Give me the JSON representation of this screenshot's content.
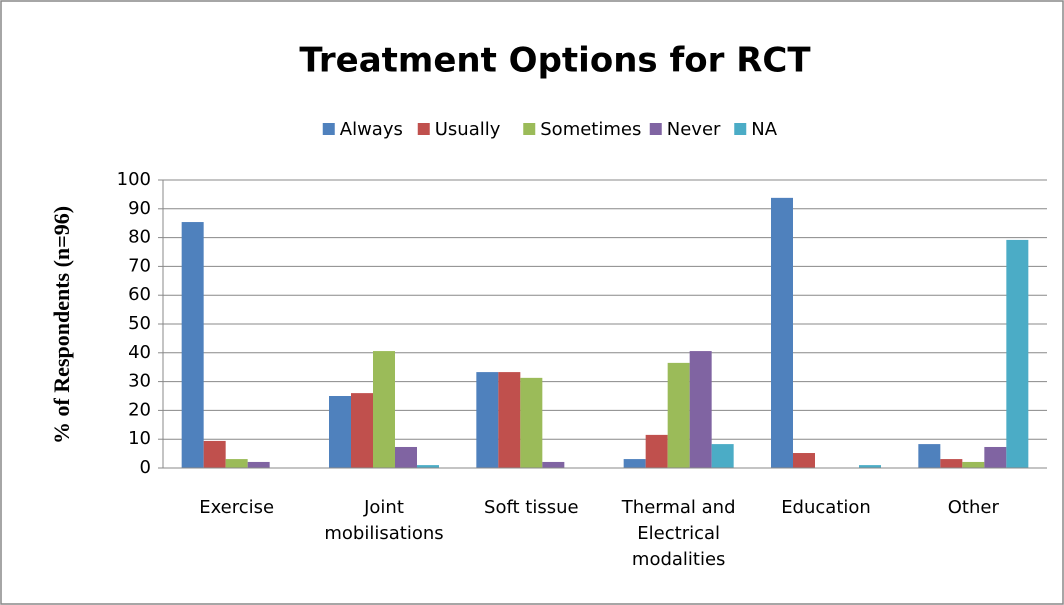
{
  "chart_data": {
    "type": "bar",
    "title": "Treatment Options for RCT",
    "ylabel": "% of Respondents (n=96)",
    "categories": [
      "Exercise",
      "Joint mobilisations",
      "Soft tissue",
      "Thermal and Electrical modalities",
      "Education",
      "Other"
    ],
    "series": [
      {
        "name": "Always",
        "color": "#4f81bd",
        "values": [
          85.4,
          25,
          33.3,
          3.1,
          93.8,
          8.3
        ]
      },
      {
        "name": "Usually",
        "color": "#c0504d",
        "values": [
          9.4,
          26,
          33.3,
          11.5,
          5.2,
          3.1
        ]
      },
      {
        "name": "Sometimes",
        "color": "#9bbb59",
        "values": [
          3.1,
          40.6,
          31.3,
          36.5,
          0,
          2.1
        ]
      },
      {
        "name": "Never",
        "color": "#8064a2",
        "values": [
          2.1,
          7.3,
          2.1,
          40.6,
          0,
          7.3
        ]
      },
      {
        "name": "NA",
        "color": "#4bacc6",
        "values": [
          0,
          1,
          0,
          8.3,
          1,
          79.2
        ]
      }
    ],
    "ylim": [
      0,
      100
    ],
    "yticks": [
      0,
      10,
      20,
      30,
      40,
      50,
      60,
      70,
      80,
      90,
      100
    ],
    "grid": true,
    "legend": "top"
  }
}
